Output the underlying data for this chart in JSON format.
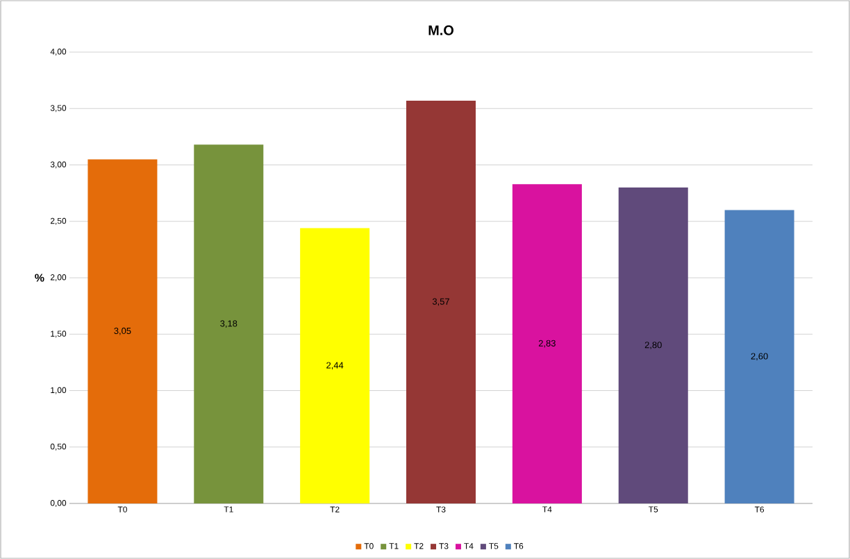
{
  "chart_data": {
    "type": "bar",
    "title": "M.O",
    "ylabel": "%",
    "stacked": true,
    "categories": [
      "T0",
      "T1",
      "T2",
      "T3",
      "T4",
      "T5",
      "T6"
    ],
    "series": [
      {
        "name": "T0",
        "color": "#e46c0a",
        "values": [
          3.05,
          null,
          null,
          null,
          null,
          null,
          null
        ],
        "value_labels": [
          "3,05",
          null,
          null,
          null,
          null,
          null,
          null
        ]
      },
      {
        "name": "T1",
        "color": "#77933c",
        "values": [
          null,
          3.18,
          null,
          null,
          null,
          null,
          null
        ],
        "value_labels": [
          null,
          "3,18",
          null,
          null,
          null,
          null,
          null
        ]
      },
      {
        "name": "T2",
        "color": "#ffff00",
        "values": [
          null,
          null,
          2.44,
          null,
          null,
          null,
          null
        ],
        "value_labels": [
          null,
          null,
          "2,44",
          null,
          null,
          null,
          null
        ]
      },
      {
        "name": "T3",
        "color": "#953735",
        "values": [
          null,
          null,
          null,
          3.57,
          null,
          null,
          null
        ],
        "value_labels": [
          null,
          null,
          null,
          "3,57",
          null,
          null,
          null
        ]
      },
      {
        "name": "T4",
        "color": "#d9129f",
        "values": [
          null,
          null,
          null,
          null,
          2.83,
          null,
          null
        ],
        "value_labels": [
          null,
          null,
          null,
          null,
          "2,83",
          null,
          null
        ]
      },
      {
        "name": "T5",
        "color": "#604a7b",
        "values": [
          null,
          null,
          null,
          null,
          null,
          2.8,
          null
        ],
        "value_labels": [
          null,
          null,
          null,
          null,
          null,
          "2,80",
          null
        ]
      },
      {
        "name": "T6",
        "color": "#4f81bd",
        "values": [
          null,
          null,
          null,
          null,
          null,
          null,
          2.6
        ],
        "value_labels": [
          null,
          null,
          null,
          null,
          null,
          null,
          "2,60"
        ]
      }
    ],
    "ylim": [
      0,
      4
    ],
    "yticks": [
      {
        "value": 0,
        "label": "0,00"
      },
      {
        "value": 0.5,
        "label": "0,50"
      },
      {
        "value": 1,
        "label": "1,00"
      },
      {
        "value": 1.5,
        "label": "1,50"
      },
      {
        "value": 2,
        "label": "2,00"
      },
      {
        "value": 2.5,
        "label": "2,50"
      },
      {
        "value": 3,
        "label": "3,00"
      },
      {
        "value": 3.5,
        "label": "3,50"
      },
      {
        "value": 4,
        "label": "4,00"
      }
    ],
    "grid": "y",
    "legend": "bottom"
  }
}
